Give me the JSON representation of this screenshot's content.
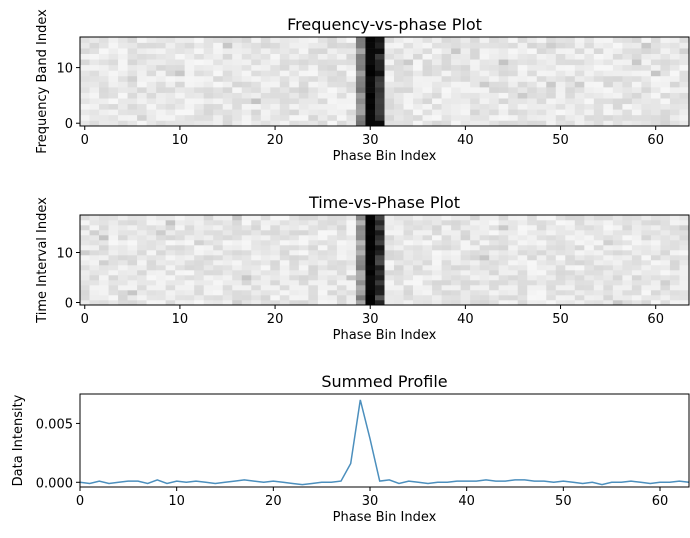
{
  "chart_data": [
    {
      "type": "heatmap",
      "title": "Frequency-vs-phase Plot",
      "xlabel": "Phase Bin Index",
      "ylabel": "Frequency Band Index",
      "n_cols": 64,
      "n_rows": 16,
      "xlim": [
        -0.5,
        63.5
      ],
      "ylim": [
        -0.5,
        15.5
      ],
      "xticks": [
        0,
        10,
        20,
        30,
        40,
        50,
        60
      ],
      "yticks": [
        0,
        10
      ],
      "colormap": "gray_r",
      "pulse_columns": [
        29,
        30,
        31
      ],
      "pulse_intensity": [
        0.45,
        1.0,
        0.85
      ],
      "background_intensity": [
        0.03,
        0.16
      ]
    },
    {
      "type": "heatmap",
      "title": "Time-vs-Phase Plot",
      "xlabel": "Phase Bin Index",
      "ylabel": "Time Interval Index",
      "n_cols": 64,
      "n_rows": 18,
      "xlim": [
        -0.5,
        63.5
      ],
      "ylim": [
        -0.5,
        17.5
      ],
      "xticks": [
        0,
        10,
        20,
        30,
        40,
        50,
        60
      ],
      "yticks": [
        0,
        10
      ],
      "colormap": "gray_r",
      "pulse_columns": [
        29,
        30,
        31
      ],
      "pulse_intensity": [
        0.4,
        1.0,
        0.8
      ],
      "background_intensity": [
        0.03,
        0.16
      ]
    },
    {
      "type": "line",
      "title": "Summed Profile",
      "xlabel": "Phase Bin Index",
      "ylabel": "Data Intensity",
      "xlim": [
        0,
        63
      ],
      "ylim": [
        -0.0004,
        0.0075
      ],
      "xticks": [
        0,
        10,
        20,
        30,
        40,
        50,
        60
      ],
      "yticks": [
        0.0,
        0.005
      ],
      "ytick_labels": [
        "0.000",
        "0.005"
      ],
      "line_color": "#4c8fbd",
      "x": [
        0,
        1,
        2,
        3,
        4,
        5,
        6,
        7,
        8,
        9,
        10,
        11,
        12,
        13,
        14,
        15,
        16,
        17,
        18,
        19,
        20,
        21,
        22,
        23,
        24,
        25,
        26,
        27,
        28,
        29,
        30,
        31,
        32,
        33,
        34,
        35,
        36,
        37,
        38,
        39,
        40,
        41,
        42,
        43,
        44,
        45,
        46,
        47,
        48,
        49,
        50,
        51,
        52,
        53,
        54,
        55,
        56,
        57,
        58,
        59,
        60,
        61,
        62,
        63
      ],
      "y": [
        0.0,
        -0.0001,
        0.0001,
        -0.0001,
        0.0,
        0.0001,
        0.0001,
        -0.0001,
        0.0002,
        -0.0001,
        0.0001,
        0.0,
        0.0001,
        0.0,
        -0.0001,
        0.0,
        0.0001,
        0.0002,
        0.0001,
        0.0,
        0.0001,
        0.0,
        -0.0001,
        -0.0002,
        -0.0001,
        0.0,
        0.0,
        0.0001,
        0.0016,
        0.007,
        0.0037,
        0.0001,
        0.0002,
        -0.0001,
        0.0001,
        0.0,
        -0.0001,
        0.0,
        0.0,
        0.0001,
        0.0001,
        0.0001,
        0.0002,
        0.0001,
        0.0001,
        0.0002,
        0.0002,
        0.0001,
        0.0001,
        0.0,
        0.0001,
        0.0,
        -0.0001,
        0.0,
        -0.0002,
        0.0,
        0.0,
        0.0001,
        0.0,
        -0.0001,
        0.0,
        0.0,
        0.0001,
        0.0
      ]
    }
  ]
}
